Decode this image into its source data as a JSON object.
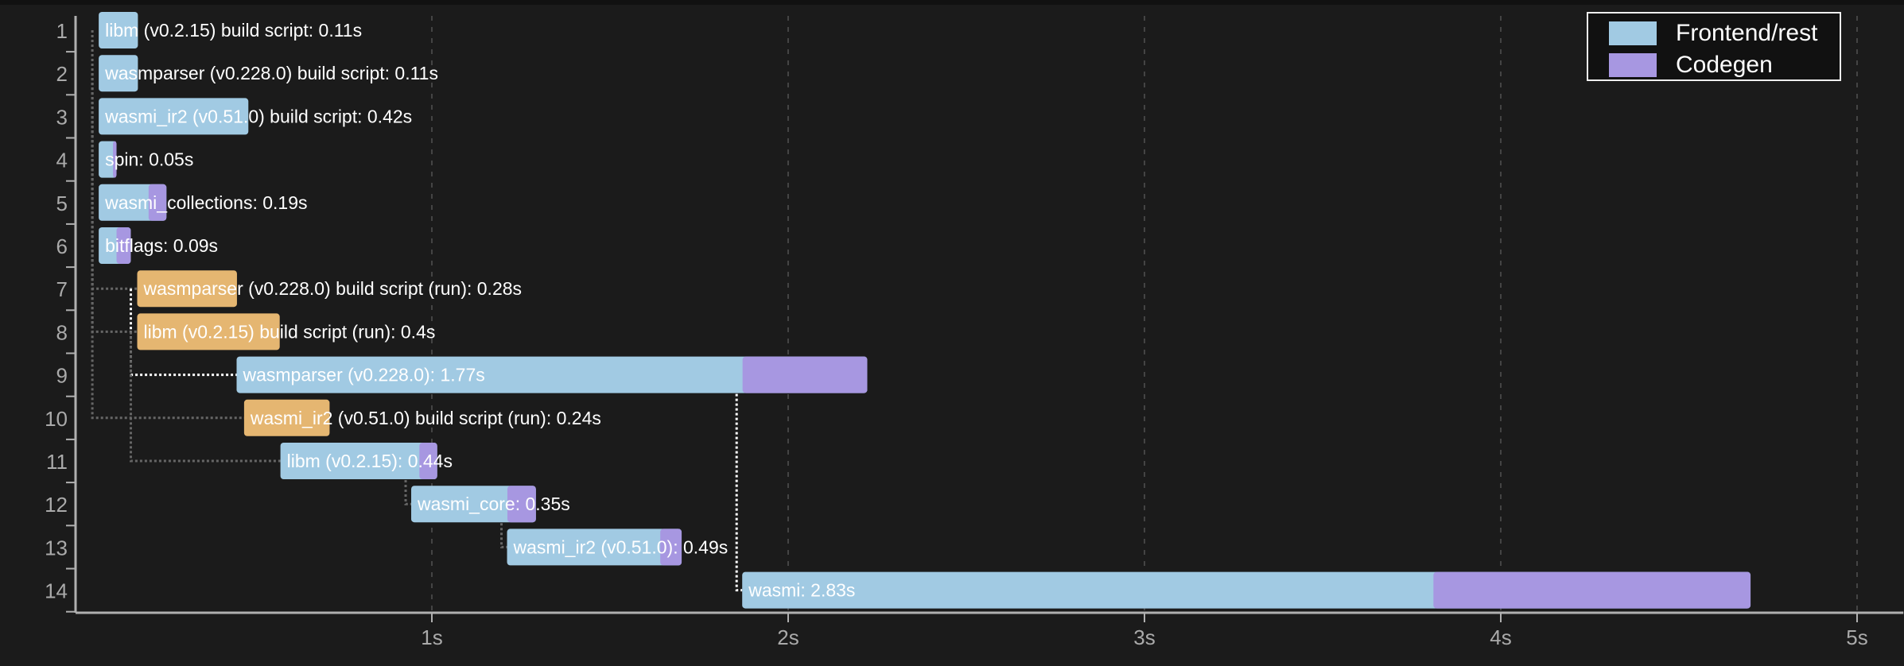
{
  "chart_data": {
    "type": "bar",
    "subtype": "gantt-timeline",
    "xlabel": "",
    "ylabel": "",
    "xlim": [
      0,
      5.13
    ],
    "x_ticks": [
      {
        "value": 1,
        "label": "1s"
      },
      {
        "value": 2,
        "label": "2s"
      },
      {
        "value": 3,
        "label": "3s"
      },
      {
        "value": 4,
        "label": "4s"
      },
      {
        "value": 5,
        "label": "5s"
      }
    ],
    "grid": "vertical dashed",
    "legend_position": "top-right",
    "legend": [
      {
        "name": "Frontend/rest",
        "color": "#a1cae3"
      },
      {
        "name": "Codegen",
        "color": "#a797e1"
      }
    ],
    "build_script_run_color": "#e5b671",
    "units": [
      {
        "row": "1",
        "label": "libm (v0.2.15) build script: 0.11s",
        "start": 0.065,
        "duration": 0.11,
        "codegen": 0,
        "kind": "compile"
      },
      {
        "row": "2",
        "label": "wasmparser (v0.228.0) build script: 0.11s",
        "start": 0.065,
        "duration": 0.11,
        "codegen": 0,
        "kind": "compile"
      },
      {
        "row": "3",
        "label": "wasmi_ir2 (v0.51.0) build script: 0.42s",
        "start": 0.065,
        "duration": 0.42,
        "codegen": 0,
        "kind": "compile"
      },
      {
        "row": "4",
        "label": "spin: 0.05s",
        "start": 0.065,
        "duration": 0.05,
        "codegen": 0.01,
        "kind": "compile"
      },
      {
        "row": "5",
        "label": "wasmi_collections: 0.19s",
        "start": 0.065,
        "duration": 0.19,
        "codegen": 0.05,
        "kind": "compile"
      },
      {
        "row": "6",
        "label": "bitflags: 0.09s",
        "start": 0.065,
        "duration": 0.09,
        "codegen": 0.04,
        "kind": "compile"
      },
      {
        "row": "7",
        "label": "wasmparser (v0.228.0) build script (run): 0.28s",
        "start": 0.173,
        "duration": 0.28,
        "codegen": 0,
        "kind": "run"
      },
      {
        "row": "8",
        "label": "libm (v0.2.15) build script (run): 0.4s",
        "start": 0.173,
        "duration": 0.4,
        "codegen": 0,
        "kind": "run"
      },
      {
        "row": "9",
        "label": "wasmparser (v0.228.0): 1.77s",
        "start": 0.452,
        "duration": 1.77,
        "codegen": 0.35,
        "kind": "compile"
      },
      {
        "row": "10",
        "label": "wasmi_ir2 (v0.51.0) build script (run): 0.24s",
        "start": 0.473,
        "duration": 0.24,
        "codegen": 0,
        "kind": "run"
      },
      {
        "row": "11",
        "label": "libm (v0.2.15): 0.44s",
        "start": 0.575,
        "duration": 0.44,
        "codegen": 0.05,
        "kind": "compile"
      },
      {
        "row": "12",
        "label": "wasmi_core: 0.35s",
        "start": 0.942,
        "duration": 0.35,
        "codegen": 0.08,
        "kind": "compile"
      },
      {
        "row": "13",
        "label": "wasmi_ir2 (v0.51.0): 0.49s",
        "start": 1.211,
        "duration": 0.49,
        "codegen": 0.06,
        "kind": "compile"
      },
      {
        "row": "14",
        "label": "wasmi: 2.83s",
        "start": 1.871,
        "duration": 2.83,
        "codegen": 0.89,
        "kind": "compile"
      }
    ],
    "dependencies": [
      {
        "from": 1,
        "to": 8,
        "critical": false
      },
      {
        "from": 2,
        "to": 7,
        "critical": false
      },
      {
        "from": 3,
        "to": 10,
        "critical": false
      },
      {
        "from": 7,
        "to": 9,
        "critical": true
      },
      {
        "from": 8,
        "to": 11,
        "critical": false
      },
      {
        "from": 11,
        "to": 12,
        "critical": false
      },
      {
        "from": 12,
        "to": 13,
        "critical": false
      },
      {
        "from": 9,
        "to": 14,
        "critical": true
      }
    ]
  }
}
